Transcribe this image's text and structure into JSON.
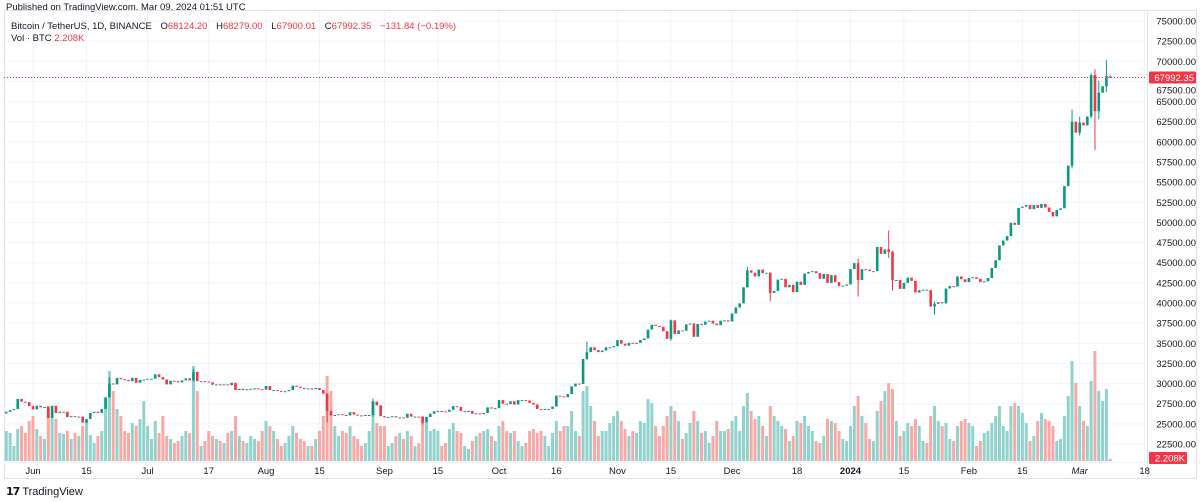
{
  "header": {
    "published": "Published on TradingView.com, Mar 09, 2024 01:51 UTC"
  },
  "legend": {
    "symbol": "Bitcoin / TetherUS, 1D, BINANCE",
    "o_label": "O",
    "o": "68124.20",
    "h_label": "H",
    "h": "68279.00",
    "l_label": "L",
    "l": "67900.01",
    "c_label": "C",
    "c": "67992.35",
    "change": "−131.84 (−0.19%)",
    "vol_label": "Vol · BTC",
    "vol": "2.208K"
  },
  "footer": {
    "logo_text": "TradingView",
    "logo_mark": "17"
  },
  "colors": {
    "up": "#089981",
    "down": "#f23645",
    "vol_up": "#92d2cc",
    "vol_down": "#f7a9a7",
    "grid": "#f0f3fa",
    "last_price": "#f23645"
  },
  "chart_data": {
    "type": "candlestick",
    "title": "Bitcoin / TetherUS, 1D, BINANCE",
    "interval": "1D",
    "start_date": "2023-05-25",
    "first_open": 26300,
    "last_open": 68124.2,
    "last_price": 67992.35,
    "last_price_label": "67992.35",
    "last_volume_label": "2.208K",
    "ylim": [
      21000,
      76000
    ],
    "y_ticks": [
      "75000.00",
      "72500.00",
      "70000.00",
      "67500.00",
      "65000.00",
      "62500.00",
      "60000.00",
      "57500.00",
      "55000.00",
      "52500.00",
      "50000.00",
      "47500.00",
      "45000.00",
      "42500.00",
      "40000.00",
      "37500.00",
      "35000.00",
      "32500.00",
      "30000.00",
      "27500.00",
      "25000.00",
      "22500.00"
    ],
    "x_ticks": [
      {
        "date": "2023-06-01",
        "label": "Jun"
      },
      {
        "date": "2023-06-15",
        "label": "15"
      },
      {
        "date": "2023-07-01",
        "label": "Jul"
      },
      {
        "date": "2023-07-17",
        "label": "17"
      },
      {
        "date": "2023-08-01",
        "label": "Aug"
      },
      {
        "date": "2023-08-15",
        "label": "15"
      },
      {
        "date": "2023-09-01",
        "label": "Sep"
      },
      {
        "date": "2023-09-15",
        "label": "15"
      },
      {
        "date": "2023-10-01",
        "label": "Oct"
      },
      {
        "date": "2023-10-16",
        "label": "16"
      },
      {
        "date": "2023-11-01",
        "label": "Nov"
      },
      {
        "date": "2023-11-15",
        "label": "15"
      },
      {
        "date": "2023-12-01",
        "label": "Dec"
      },
      {
        "date": "2023-12-18",
        "label": "18"
      },
      {
        "date": "2024-01-01",
        "label": "2024"
      },
      {
        "date": "2024-01-15",
        "label": "15"
      },
      {
        "date": "2024-02-01",
        "label": "Feb"
      },
      {
        "date": "2024-02-15",
        "label": "15"
      },
      {
        "date": "2024-03-01",
        "label": "Mar"
      },
      {
        "date": "2024-03-18",
        "label": "18"
      }
    ],
    "close": [
      26500,
      26700,
      26850,
      28100,
      27750,
      27700,
      27200,
      26800,
      27250,
      27050,
      27100,
      25750,
      27250,
      26350,
      26500,
      26500,
      25850,
      25950,
      25900,
      25900,
      25150,
      25600,
      26350,
      26500,
      26350,
      26850,
      28300,
      30000,
      29900,
      30700,
      30550,
      30450,
      30300,
      30700,
      30100,
      30450,
      30500,
      30600,
      30600,
      31150,
      30800,
      30500,
      29900,
      30350,
      30300,
      30150,
      30400,
      30650,
      30400,
      31450,
      30300,
      30300,
      30250,
      30150,
      29850,
      29900,
      29800,
      29900,
      29800,
      30100,
      29200,
      29350,
      29200,
      29300,
      29350,
      29400,
      29300,
      29250,
      29700,
      29200,
      29200,
      29100,
      29050,
      29050,
      29200,
      29750,
      29600,
      29450,
      29400,
      29400,
      29300,
      29450,
      29200,
      28750,
      26600,
      26050,
      26100,
      26200,
      26100,
      26050,
      26450,
      26150,
      26050,
      26000,
      26100,
      26100,
      27750,
      27300,
      25950,
      25800,
      25850,
      25950,
      25800,
      25800,
      25750,
      26250,
      25900,
      25900,
      25850,
      25150,
      25850,
      26250,
      26550,
      26600,
      26550,
      26500,
      26750,
      27200,
      27100,
      26600,
      26600,
      26600,
      26250,
      26300,
      26200,
      26350,
      27050,
      26900,
      26950,
      27950,
      27500,
      27450,
      27800,
      27400,
      27950,
      27950,
      27900,
      27600,
      27400,
      26850,
      26750,
      26850,
      26850,
      27150,
      28500,
      28400,
      28300,
      28700,
      29650,
      30000,
      29950,
      33050,
      33900,
      34500,
      34150,
      33900,
      34100,
      34500,
      34500,
      34650,
      35400,
      34950,
      34700,
      35050,
      35000,
      35050,
      35400,
      35600,
      36700,
      37300,
      37150,
      37050,
      36500,
      35550,
      37850,
      36150,
      36600,
      36550,
      37350,
      37450,
      35800,
      37400,
      37300,
      37700,
      37800,
      37450,
      37250,
      37800,
      37850,
      37700,
      38700,
      39450,
      39950,
      41950,
      44050,
      43750,
      43300,
      44150,
      43700,
      43750,
      41250,
      41500,
      42900,
      43000,
      41950,
      42250,
      41350,
      42650,
      42250,
      43650,
      43850,
      43950,
      43700,
      43000,
      43600,
      42500,
      43450,
      42600,
      42100,
      42150,
      42300,
      44200,
      44950,
      42850,
      44200,
      44150,
      43950,
      43950,
      46950,
      46100,
      46650,
      46350,
      42850,
      42850,
      41750,
      42500,
      43150,
      42750,
      41300,
      41600,
      41650,
      41600,
      39550,
      39900,
      40100,
      39950,
      41800,
      42100,
      42050,
      43300,
      42950,
      42600,
      43100,
      43200,
      43000,
      42600,
      42700,
      43100,
      44350,
      45300,
      47150,
      47750,
      48300,
      49950,
      49700,
      51800,
      51950,
      52150,
      51650,
      52150,
      51800,
      52300,
      51850,
      51300,
      50750,
      51550,
      51750,
      54500,
      57050,
      62500,
      61150,
      62400,
      62050,
      63150,
      68300,
      63800,
      66100,
      66900,
      68150,
      67992.35
    ],
    "wicks": [
      {
        "date": "2023-06-21",
        "high": 30800,
        "low": 28250
      },
      {
        "date": "2023-07-13",
        "high": 31800,
        "low": 30250
      },
      {
        "date": "2023-08-17",
        "high": 28800,
        "low": 25200
      },
      {
        "date": "2023-08-29",
        "high": 28150,
        "low": 25900
      },
      {
        "date": "2023-09-11",
        "high": 25900,
        "low": 24900
      },
      {
        "date": "2023-10-24",
        "high": 35200,
        "low": 32900
      },
      {
        "date": "2023-11-15",
        "high": 37950,
        "low": 35300
      },
      {
        "date": "2023-12-05",
        "high": 44500,
        "low": 41900
      },
      {
        "date": "2023-12-11",
        "high": 43800,
        "low": 40200
      },
      {
        "date": "2024-01-03",
        "high": 45500,
        "low": 40800
      },
      {
        "date": "2024-01-11",
        "high": 49000,
        "low": 45600
      },
      {
        "date": "2024-01-12",
        "high": 46500,
        "low": 41500
      },
      {
        "date": "2024-01-23",
        "high": 40200,
        "low": 38550
      },
      {
        "date": "2024-02-28",
        "high": 64000,
        "low": 56700
      },
      {
        "date": "2024-03-01",
        "high": 63100,
        "low": 60800
      },
      {
        "date": "2024-03-04",
        "high": 68500,
        "low": 62900
      },
      {
        "date": "2024-03-05",
        "high": 69000,
        "low": 59000
      },
      {
        "date": "2024-03-06",
        "high": 67600,
        "low": 62800
      },
      {
        "date": "2024-03-08",
        "high": 70150,
        "low": 66200
      },
      {
        "date": "2024-03-09",
        "high": 68279,
        "low": 67900.01
      }
    ],
    "volume_k": [
      30,
      28,
      15,
      32,
      35,
      28,
      40,
      45,
      32,
      25,
      22,
      55,
      45,
      42,
      28,
      27,
      30,
      22,
      28,
      25,
      35,
      40,
      26,
      18,
      25,
      30,
      62,
      90,
      70,
      52,
      45,
      30,
      28,
      38,
      35,
      42,
      60,
      35,
      22,
      40,
      28,
      45,
      25,
      22,
      18,
      20,
      25,
      30,
      28,
      95,
      70,
      15,
      20,
      30,
      25,
      22,
      20,
      18,
      28,
      30,
      45,
      25,
      20,
      18,
      25,
      22,
      20,
      30,
      40,
      35,
      30,
      22,
      15,
      18,
      25,
      35,
      28,
      22,
      20,
      15,
      15,
      22,
      30,
      45,
      85,
      70,
      35,
      25,
      30,
      28,
      35,
      25,
      22,
      15,
      18,
      30,
      60,
      38,
      35,
      35,
      15,
      18,
      25,
      28,
      22,
      30,
      25,
      15,
      18,
      45,
      38,
      30,
      32,
      30,
      15,
      18,
      32,
      38,
      30,
      28,
      15,
      12,
      20,
      25,
      28,
      30,
      32,
      25,
      20,
      35,
      40,
      30,
      28,
      30,
      20,
      15,
      18,
      30,
      32,
      28,
      30,
      25,
      15,
      28,
      40,
      30,
      35,
      35,
      50,
      30,
      25,
      70,
      75,
      55,
      40,
      25,
      30,
      30,
      38,
      45,
      50,
      40,
      32,
      25,
      30,
      28,
      40,
      38,
      62,
      58,
      35,
      25,
      35,
      45,
      55,
      50,
      40,
      22,
      28,
      38,
      50,
      40,
      28,
      30,
      18,
      25,
      40,
      30,
      30,
      32,
      40,
      45,
      30,
      55,
      68,
      50,
      42,
      45,
      35,
      25,
      55,
      45,
      40,
      35,
      32,
      20,
      25,
      40,
      38,
      45,
      35,
      30,
      20,
      18,
      25,
      42,
      40,
      38,
      30,
      22,
      20,
      35,
      55,
      65,
      45,
      38,
      22,
      20,
      50,
      60,
      70,
      78,
      72,
      40,
      25,
      30,
      38,
      35,
      42,
      35,
      20,
      18,
      45,
      55,
      40,
      35,
      38,
      22,
      20,
      35,
      40,
      42,
      38,
      35,
      15,
      20,
      28,
      30,
      38,
      45,
      55,
      35,
      30,
      55,
      58,
      55,
      48,
      38,
      20,
      25,
      40,
      48,
      42,
      40,
      35,
      20,
      22,
      45,
      65,
      100,
      78,
      55,
      40,
      35,
      80,
      110,
      70,
      60,
      72,
      2.208
    ],
    "grid": true
  }
}
